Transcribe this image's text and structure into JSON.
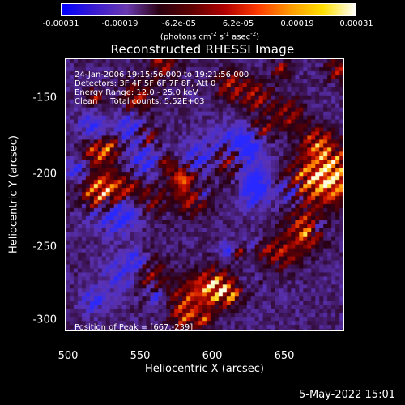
{
  "colorbar": {
    "ticks": [
      "-0.00031",
      "-0.00019",
      "-6.2e-05",
      "6.2e-05",
      "0.00019",
      "0.00031"
    ],
    "units_main": "(photons cm",
    "units_exp1": "-2",
    "units_mid": " s",
    "units_exp2": "-1",
    "units_end": " asec",
    "units_exp3": "-2",
    "units_close": ")",
    "colors": [
      "#0000ff",
      "#3a1bd0",
      "#6a3ab0",
      "#2a0010",
      "#600000",
      "#b00000",
      "#ff3a00",
      "#ff9a00",
      "#ffe000",
      "#ffffff"
    ]
  },
  "plot": {
    "title": "Reconstructed RHESSI Image",
    "annotations": [
      "24-Jan-2006 19:15:56.000 to 19:21:56.000",
      "Detectors: 3F 4F 5F 6F 7F 8F, Att 0",
      "Energy Range: 12.0 - 25.0 keV",
      "Clean     Total counts: 5.52E+03"
    ],
    "peak": "Position of Peak = [667,-239]",
    "x_ticks": [
      "500",
      "550",
      "600",
      "650"
    ],
    "y_ticks": [
      "-150",
      "-200",
      "-250",
      "-300"
    ],
    "xlabel": "Heliocentric X (arcsec)",
    "ylabel": "Heliocentric Y (arcsec)"
  },
  "timestamp": "5-May-2022 15:01"
}
